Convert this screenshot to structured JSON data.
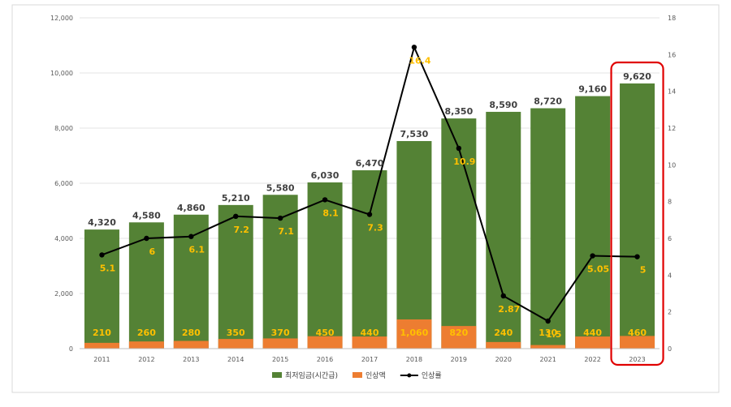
{
  "chart_data": {
    "type": "bar",
    "categories": [
      "2011",
      "2012",
      "2013",
      "2014",
      "2015",
      "2016",
      "2017",
      "2018",
      "2019",
      "2020",
      "2021",
      "2022",
      "2023"
    ],
    "series": [
      {
        "name": "최저임금(시간급)",
        "type": "bar",
        "axis": "left",
        "color": "#548235",
        "values": [
          4320,
          4580,
          4860,
          5210,
          5580,
          6030,
          6470,
          7530,
          8350,
          8590,
          8720,
          9160,
          9620
        ],
        "labels": [
          "4,320",
          "4,580",
          "4,860",
          "5,210",
          "5,580",
          "6,030",
          "6,470",
          "7,530",
          "8,350",
          "8,590",
          "8,720",
          "9,160",
          "9,620"
        ]
      },
      {
        "name": "인상액",
        "type": "bar",
        "axis": "left",
        "color": "#ED7D31",
        "values": [
          210,
          260,
          280,
          350,
          370,
          450,
          440,
          1060,
          820,
          240,
          130,
          440,
          460
        ],
        "labels": [
          "210",
          "260",
          "280",
          "350",
          "370",
          "450",
          "440",
          "1,060",
          "820",
          "240",
          "130",
          "440",
          "460"
        ]
      },
      {
        "name": "인상률",
        "type": "line",
        "axis": "right",
        "color": "#000000",
        "values": [
          5.1,
          6,
          6.1,
          7.2,
          7.1,
          8.1,
          7.3,
          16.4,
          10.9,
          2.87,
          1.5,
          5.05,
          5
        ],
        "labels": [
          "5.1",
          "6",
          "6.1",
          "7.2",
          "7.1",
          "8.1",
          "7.3",
          "16.4",
          "10.9",
          "2.87",
          "1.5",
          "5.05",
          "5"
        ]
      }
    ],
    "y_left": {
      "min": 0,
      "max": 12000,
      "ticks": [
        "0",
        "2,000",
        "4,000",
        "6,000",
        "8,000",
        "10,000",
        "12,000"
      ]
    },
    "y_right": {
      "min": 0,
      "max": 18,
      "ticks": [
        "0",
        "2",
        "4",
        "6",
        "8",
        "10",
        "12",
        "14",
        "16",
        "18"
      ]
    },
    "highlight_category": "2023",
    "legend_position": "bottom",
    "colors": {
      "bar_main": "#548235",
      "bar_increase": "#ED7D31",
      "line": "#000000",
      "label_value": "#FFC000",
      "label_total": "#404040",
      "highlight": "#E00000"
    }
  }
}
